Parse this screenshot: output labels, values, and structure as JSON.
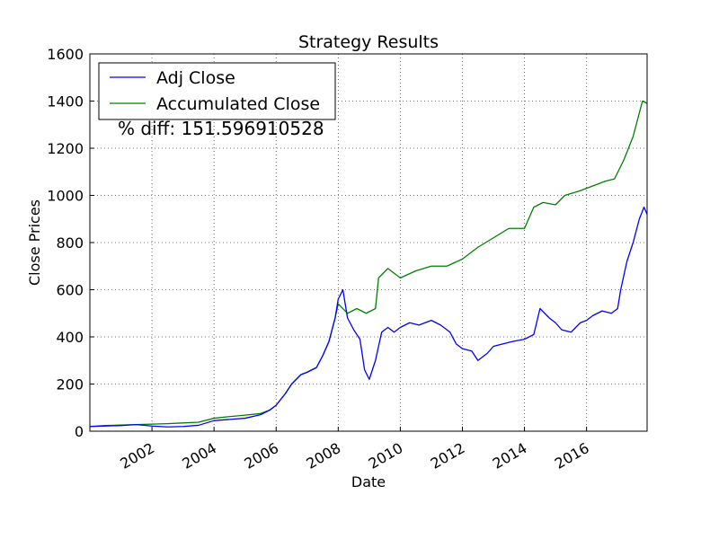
{
  "chart_data": {
    "type": "line",
    "title": "Strategy Results",
    "xlabel": "Date",
    "ylabel": "Close Prices",
    "xlim": [
      2000.0,
      2017.95
    ],
    "ylim": [
      0,
      1600
    ],
    "x_ticks": [
      2002,
      2004,
      2006,
      2008,
      2010,
      2012,
      2014,
      2016
    ],
    "y_ticks": [
      0,
      200,
      400,
      600,
      800,
      1000,
      1200,
      1400,
      1600
    ],
    "grid": true,
    "legend_position": "top-left",
    "annotation": "% diff: 151.596910528",
    "series": [
      {
        "name": "Adj Close",
        "color": "#0000ff",
        "points": [
          [
            2000.0,
            20
          ],
          [
            2000.5,
            22
          ],
          [
            2001.0,
            24
          ],
          [
            2001.5,
            28
          ],
          [
            2002.0,
            22
          ],
          [
            2002.5,
            18
          ],
          [
            2003.0,
            20
          ],
          [
            2003.5,
            25
          ],
          [
            2004.0,
            45
          ],
          [
            2004.5,
            50
          ],
          [
            2005.0,
            55
          ],
          [
            2005.5,
            70
          ],
          [
            2005.8,
            90
          ],
          [
            2006.0,
            110
          ],
          [
            2006.3,
            160
          ],
          [
            2006.5,
            200
          ],
          [
            2006.8,
            240
          ],
          [
            2007.0,
            250
          ],
          [
            2007.3,
            270
          ],
          [
            2007.5,
            320
          ],
          [
            2007.7,
            380
          ],
          [
            2007.9,
            480
          ],
          [
            2008.0,
            560
          ],
          [
            2008.15,
            600
          ],
          [
            2008.3,
            480
          ],
          [
            2008.5,
            430
          ],
          [
            2008.7,
            390
          ],
          [
            2008.85,
            260
          ],
          [
            2009.0,
            220
          ],
          [
            2009.2,
            300
          ],
          [
            2009.4,
            420
          ],
          [
            2009.6,
            440
          ],
          [
            2009.8,
            420
          ],
          [
            2010.0,
            440
          ],
          [
            2010.3,
            460
          ],
          [
            2010.6,
            450
          ],
          [
            2011.0,
            470
          ],
          [
            2011.3,
            450
          ],
          [
            2011.6,
            420
          ],
          [
            2011.8,
            370
          ],
          [
            2012.0,
            350
          ],
          [
            2012.3,
            340
          ],
          [
            2012.5,
            300
          ],
          [
            2012.8,
            330
          ],
          [
            2013.0,
            360
          ],
          [
            2013.3,
            370
          ],
          [
            2013.6,
            380
          ],
          [
            2014.0,
            390
          ],
          [
            2014.3,
            410
          ],
          [
            2014.5,
            520
          ],
          [
            2014.8,
            480
          ],
          [
            2015.0,
            460
          ],
          [
            2015.2,
            430
          ],
          [
            2015.5,
            420
          ],
          [
            2015.8,
            460
          ],
          [
            2016.0,
            470
          ],
          [
            2016.2,
            490
          ],
          [
            2016.5,
            510
          ],
          [
            2016.8,
            500
          ],
          [
            2017.0,
            520
          ],
          [
            2017.1,
            600
          ],
          [
            2017.3,
            720
          ],
          [
            2017.5,
            800
          ],
          [
            2017.7,
            900
          ],
          [
            2017.85,
            950
          ],
          [
            2017.95,
            920
          ]
        ]
      },
      {
        "name": "Accumulated Close",
        "color": "#008000",
        "points": [
          [
            2000.0,
            20
          ],
          [
            2000.5,
            24
          ],
          [
            2001.0,
            26
          ],
          [
            2001.5,
            28
          ],
          [
            2002.0,
            30
          ],
          [
            2002.5,
            32
          ],
          [
            2003.0,
            35
          ],
          [
            2003.5,
            38
          ],
          [
            2004.0,
            55
          ],
          [
            2004.5,
            62
          ],
          [
            2005.0,
            68
          ],
          [
            2005.5,
            75
          ],
          [
            2005.8,
            90
          ],
          [
            2006.0,
            110
          ],
          [
            2006.3,
            160
          ],
          [
            2006.5,
            200
          ],
          [
            2006.8,
            240
          ],
          [
            2007.0,
            250
          ],
          [
            2007.3,
            270
          ],
          [
            2007.5,
            320
          ],
          [
            2007.7,
            380
          ],
          [
            2007.9,
            480
          ],
          [
            2008.0,
            540
          ],
          [
            2008.3,
            500
          ],
          [
            2008.6,
            520
          ],
          [
            2008.9,
            500
          ],
          [
            2009.2,
            520
          ],
          [
            2009.3,
            650
          ],
          [
            2009.6,
            690
          ],
          [
            2010.0,
            650
          ],
          [
            2010.5,
            680
          ],
          [
            2011.0,
            700
          ],
          [
            2011.5,
            700
          ],
          [
            2012.0,
            730
          ],
          [
            2012.5,
            780
          ],
          [
            2013.0,
            820
          ],
          [
            2013.5,
            860
          ],
          [
            2014.0,
            860
          ],
          [
            2014.3,
            950
          ],
          [
            2014.6,
            970
          ],
          [
            2015.0,
            960
          ],
          [
            2015.3,
            1000
          ],
          [
            2015.8,
            1020
          ],
          [
            2016.2,
            1040
          ],
          [
            2016.6,
            1060
          ],
          [
            2016.9,
            1070
          ],
          [
            2017.2,
            1150
          ],
          [
            2017.5,
            1250
          ],
          [
            2017.8,
            1400
          ],
          [
            2017.95,
            1390
          ]
        ]
      }
    ]
  }
}
